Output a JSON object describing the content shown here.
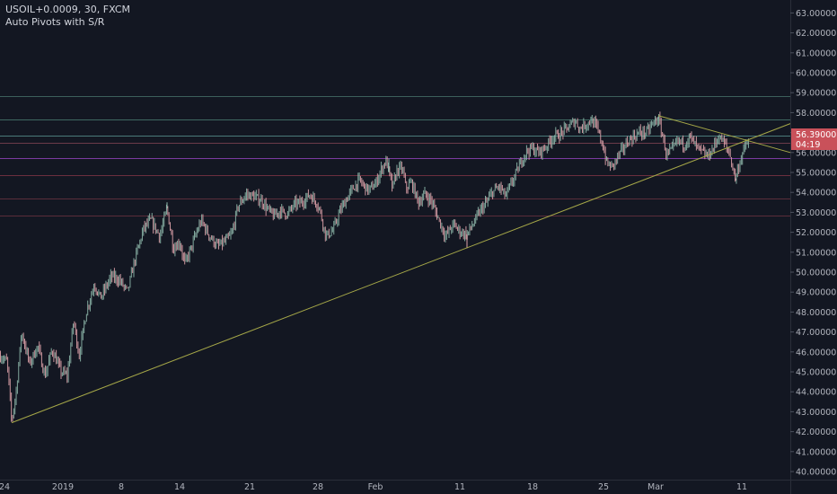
{
  "legend": {
    "symbol": "USOIL+0.0009, 30, FXCM",
    "indicator": "Auto Pivots with S/R"
  },
  "price_badge": {
    "price": "56.3900000",
    "countdown": "04:19",
    "color": "#c9515a"
  },
  "colors": {
    "background": "#131722",
    "candle_up": "#8fb9ac",
    "candle_down": "#e0a3ab",
    "trendline": "#a5a748",
    "separator": "#2a2e39"
  },
  "chart_data": {
    "type": "candlestick",
    "y_axis": {
      "min": 40,
      "max": 63,
      "tick_step": 1,
      "position": "right",
      "tick_labels": [
        "40.0000000",
        "41.0000000",
        "42.0000000",
        "43.0000000",
        "44.0000000",
        "45.0000000",
        "46.0000000",
        "47.0000000",
        "48.0000000",
        "49.0000000",
        "50.0000000",
        "51.0000000",
        "52.0000000",
        "53.0000000",
        "54.0000000",
        "55.0000000",
        "56.0000000",
        "57.0000000",
        "58.0000000",
        "59.0000000",
        "60.0000000",
        "61.0000000",
        "62.0000000",
        "63.0000000"
      ]
    },
    "x_axis": {
      "labels": [
        "24",
        "2019",
        "8",
        "14",
        "21",
        "28",
        "Feb",
        "11",
        "18",
        "25",
        "Mar",
        "11"
      ]
    },
    "price_path": [
      [
        0,
        45.8
      ],
      [
        8,
        45.5
      ],
      [
        13,
        42.5
      ],
      [
        18,
        44.0
      ],
      [
        24,
        47.0
      ],
      [
        33,
        45.4
      ],
      [
        42,
        46.3
      ],
      [
        50,
        44.8
      ],
      [
        58,
        46.1
      ],
      [
        68,
        45.0
      ],
      [
        75,
        44.8
      ],
      [
        82,
        47.6
      ],
      [
        88,
        45.8
      ],
      [
        96,
        48.0
      ],
      [
        105,
        49.4
      ],
      [
        112,
        48.7
      ],
      [
        124,
        49.8
      ],
      [
        133,
        49.6
      ],
      [
        142,
        49.0
      ],
      [
        150,
        50.6
      ],
      [
        160,
        52.2
      ],
      [
        168,
        52.6
      ],
      [
        178,
        51.8
      ],
      [
        186,
        53.2
      ],
      [
        193,
        51.2
      ],
      [
        200,
        51.5
      ],
      [
        206,
        50.4
      ],
      [
        215,
        51.5
      ],
      [
        224,
        52.6
      ],
      [
        232,
        51.9
      ],
      [
        242,
        51.3
      ],
      [
        250,
        51.5
      ],
      [
        258,
        51.9
      ],
      [
        265,
        53.3
      ],
      [
        274,
        53.9
      ],
      [
        282,
        53.8
      ],
      [
        291,
        53.6
      ],
      [
        297,
        53.2
      ],
      [
        305,
        52.8
      ],
      [
        312,
        53.1
      ],
      [
        320,
        52.9
      ],
      [
        328,
        53.4
      ],
      [
        336,
        53.5
      ],
      [
        345,
        53.9
      ],
      [
        355,
        53.3
      ],
      [
        363,
        51.8
      ],
      [
        371,
        52.1
      ],
      [
        378,
        53.0
      ],
      [
        385,
        53.6
      ],
      [
        393,
        54.2
      ],
      [
        400,
        54.6
      ],
      [
        410,
        54.1
      ],
      [
        418,
        54.4
      ],
      [
        425,
        55.2
      ],
      [
        430,
        55.6
      ],
      [
        437,
        54.2
      ],
      [
        442,
        55.1
      ],
      [
        448,
        55.2
      ],
      [
        452,
        54.2
      ],
      [
        458,
        54.5
      ],
      [
        466,
        53.5
      ],
      [
        473,
        53.9
      ],
      [
        480,
        53.6
      ],
      [
        488,
        52.7
      ],
      [
        496,
        51.8
      ],
      [
        505,
        52.4
      ],
      [
        513,
        52.0
      ],
      [
        520,
        51.9
      ],
      [
        528,
        52.5
      ],
      [
        535,
        53.1
      ],
      [
        542,
        53.5
      ],
      [
        548,
        54.0
      ],
      [
        556,
        54.3
      ],
      [
        563,
        53.8
      ],
      [
        570,
        54.5
      ],
      [
        578,
        55.3
      ],
      [
        585,
        56.0
      ],
      [
        592,
        56.2
      ],
      [
        600,
        56.0
      ],
      [
        608,
        56.3
      ],
      [
        616,
        56.8
      ],
      [
        623,
        56.9
      ],
      [
        628,
        57.1
      ],
      [
        634,
        57.3
      ],
      [
        640,
        57.6
      ],
      [
        646,
        57.2
      ],
      [
        652,
        57.4
      ],
      [
        658,
        57.6
      ],
      [
        664,
        57.3
      ],
      [
        668,
        56.8
      ],
      [
        672,
        56.2
      ],
      [
        676,
        55.4
      ],
      [
        682,
        55.3
      ],
      [
        688,
        55.8
      ],
      [
        694,
        56.2
      ],
      [
        700,
        56.6
      ],
      [
        706,
        56.8
      ],
      [
        712,
        57.0
      ],
      [
        720,
        57.0
      ],
      [
        726,
        57.4
      ],
      [
        733,
        57.7
      ],
      [
        738,
        56.8
      ],
      [
        742,
        55.9
      ],
      [
        748,
        56.1
      ],
      [
        755,
        56.6
      ],
      [
        762,
        56.4
      ],
      [
        768,
        56.8
      ],
      [
        775,
        56.3
      ],
      [
        782,
        56.0
      ],
      [
        788,
        55.8
      ],
      [
        794,
        56.2
      ],
      [
        800,
        56.8
      ],
      [
        806,
        56.5
      ],
      [
        812,
        56.0
      ],
      [
        816,
        55.2
      ],
      [
        819,
        54.7
      ],
      [
        823,
        55.4
      ],
      [
        827,
        56.0
      ],
      [
        831,
        56.4
      ],
      [
        834,
        56.5
      ]
    ],
    "extra_lows": [
      [
        13,
        42.5
      ],
      [
        520,
        51.2
      ],
      [
        819,
        54.6
      ]
    ],
    "extra_highs": [
      [
        186,
        53.5
      ],
      [
        433,
        55.7
      ],
      [
        658,
        57.8
      ],
      [
        733,
        57.8
      ]
    ],
    "horizontal_levels": [
      {
        "price": 58.85,
        "color": "#3c5f5b"
      },
      {
        "price": 57.65,
        "color": "#3f6961"
      },
      {
        "price": 56.85,
        "color": "#4a7a7a"
      },
      {
        "price": 56.5,
        "color": "#6b3a4a"
      },
      {
        "price": 55.7,
        "color": "#7a3aa0"
      },
      {
        "price": 54.85,
        "color": "#6b2f3e"
      },
      {
        "price": 53.7,
        "color": "#5a2d3a"
      },
      {
        "price": 52.85,
        "color": "#5a2d3a"
      }
    ],
    "trendlines": [
      {
        "from": [
          13,
          42.45
        ],
        "to": [
          880,
          57.45
        ]
      },
      {
        "from": [
          733,
          57.85
        ],
        "to": [
          880,
          56.0
        ]
      }
    ]
  }
}
